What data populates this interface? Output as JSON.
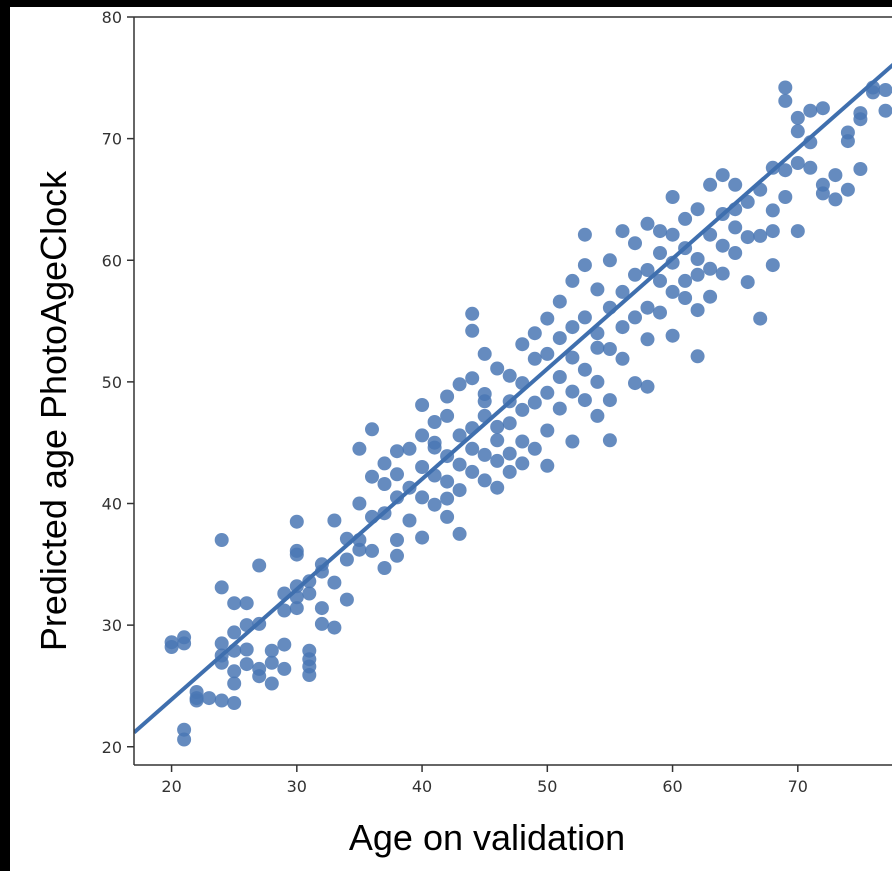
{
  "chart_data": {
    "type": "scatter",
    "title": "",
    "xlabel": "Age on validation",
    "ylabel": "Predicted age PhotoAgeClock",
    "xlim": [
      17,
      78
    ],
    "ylim": [
      18.5,
      80
    ],
    "x_ticks": [
      20,
      30,
      40,
      50,
      60,
      70
    ],
    "y_ticks": [
      20,
      30,
      40,
      50,
      60,
      70,
      80
    ],
    "grid": false,
    "legend": "none",
    "colors": {
      "points": "#4a77b4",
      "line": "#3f6fae",
      "axis": "#333333"
    },
    "regression_line": {
      "slope": 0.906,
      "intercept": 5.77
    },
    "series": [
      {
        "values": [
          [
            20,
            28.2
          ],
          [
            20,
            28.6
          ],
          [
            21,
            28.5
          ],
          [
            21,
            29.0
          ],
          [
            21,
            21.4
          ],
          [
            21,
            20.6
          ],
          [
            22,
            24.0
          ],
          [
            22,
            23.8
          ],
          [
            22,
            24.5
          ],
          [
            23,
            24.0
          ],
          [
            24,
            23.8
          ],
          [
            25,
            23.6
          ],
          [
            24,
            37.0
          ],
          [
            24,
            33.1
          ],
          [
            24,
            28.5
          ],
          [
            24,
            27.5
          ],
          [
            24,
            26.9
          ],
          [
            25,
            27.9
          ],
          [
            25,
            29.4
          ],
          [
            25,
            26.2
          ],
          [
            25,
            31.8
          ],
          [
            25,
            25.2
          ],
          [
            26,
            31.8
          ],
          [
            26,
            30.0
          ],
          [
            26,
            28.0
          ],
          [
            26,
            26.8
          ],
          [
            27,
            34.9
          ],
          [
            27,
            26.4
          ],
          [
            27,
            25.8
          ],
          [
            27,
            30.1
          ],
          [
            28,
            25.2
          ],
          [
            28,
            26.9
          ],
          [
            28,
            27.9
          ],
          [
            29,
            28.4
          ],
          [
            29,
            26.4
          ],
          [
            29,
            31.2
          ],
          [
            29,
            32.6
          ],
          [
            30,
            38.5
          ],
          [
            30,
            36.1
          ],
          [
            30,
            35.8
          ],
          [
            30,
            31.4
          ],
          [
            30,
            32.3
          ],
          [
            30,
            33.2
          ],
          [
            31,
            27.9
          ],
          [
            31,
            27.2
          ],
          [
            31,
            26.6
          ],
          [
            31,
            25.9
          ],
          [
            31,
            32.6
          ],
          [
            31,
            33.6
          ],
          [
            32,
            34.4
          ],
          [
            32,
            31.4
          ],
          [
            32,
            30.1
          ],
          [
            32,
            35.0
          ],
          [
            33,
            33.5
          ],
          [
            33,
            29.8
          ],
          [
            33,
            38.6
          ],
          [
            34,
            32.1
          ],
          [
            34,
            35.4
          ],
          [
            34,
            37.1
          ],
          [
            35,
            36.2
          ],
          [
            35,
            40.0
          ],
          [
            35,
            44.5
          ],
          [
            35,
            37.0
          ],
          [
            36,
            38.9
          ],
          [
            36,
            36.1
          ],
          [
            36,
            46.1
          ],
          [
            36,
            42.2
          ],
          [
            37,
            41.6
          ],
          [
            37,
            43.3
          ],
          [
            37,
            39.2
          ],
          [
            37,
            34.7
          ],
          [
            38,
            37.0
          ],
          [
            38,
            40.5
          ],
          [
            38,
            44.3
          ],
          [
            38,
            42.4
          ],
          [
            38,
            35.7
          ],
          [
            39,
            44.5
          ],
          [
            39,
            41.3
          ],
          [
            39,
            38.6
          ],
          [
            40,
            40.5
          ],
          [
            40,
            43.0
          ],
          [
            40,
            48.1
          ],
          [
            40,
            45.6
          ],
          [
            40,
            37.2
          ],
          [
            41,
            45.0
          ],
          [
            41,
            39.9
          ],
          [
            41,
            42.3
          ],
          [
            41,
            44.6
          ],
          [
            41,
            46.7
          ],
          [
            42,
            40.4
          ],
          [
            42,
            43.9
          ],
          [
            42,
            47.2
          ],
          [
            42,
            41.8
          ],
          [
            42,
            38.9
          ],
          [
            42,
            48.8
          ],
          [
            43,
            45.6
          ],
          [
            43,
            43.2
          ],
          [
            43,
            49.8
          ],
          [
            43,
            41.1
          ],
          [
            43,
            37.5
          ],
          [
            44,
            55.6
          ],
          [
            44,
            54.2
          ],
          [
            44,
            46.2
          ],
          [
            44,
            50.3
          ],
          [
            44,
            42.6
          ],
          [
            44,
            44.5
          ],
          [
            45,
            47.2
          ],
          [
            45,
            41.9
          ],
          [
            45,
            49.0
          ],
          [
            45,
            44.0
          ],
          [
            45,
            52.3
          ],
          [
            45,
            48.4
          ],
          [
            46,
            43.5
          ],
          [
            46,
            46.3
          ],
          [
            46,
            51.1
          ],
          [
            46,
            45.2
          ],
          [
            46,
            41.3
          ],
          [
            47,
            46.6
          ],
          [
            47,
            48.4
          ],
          [
            47,
            44.1
          ],
          [
            47,
            50.5
          ],
          [
            47,
            42.6
          ],
          [
            48,
            53.1
          ],
          [
            48,
            47.7
          ],
          [
            48,
            45.1
          ],
          [
            48,
            49.9
          ],
          [
            48,
            43.3
          ],
          [
            49,
            54.0
          ],
          [
            49,
            51.9
          ],
          [
            49,
            48.3
          ],
          [
            49,
            44.5
          ],
          [
            50,
            49.1
          ],
          [
            50,
            52.3
          ],
          [
            50,
            46.0
          ],
          [
            50,
            43.1
          ],
          [
            50,
            55.2
          ],
          [
            51,
            50.4
          ],
          [
            51,
            56.6
          ],
          [
            51,
            53.6
          ],
          [
            51,
            47.8
          ],
          [
            52,
            52.0
          ],
          [
            52,
            58.3
          ],
          [
            52,
            45.1
          ],
          [
            52,
            49.2
          ],
          [
            52,
            54.5
          ],
          [
            53,
            51.0
          ],
          [
            53,
            62.1
          ],
          [
            53,
            55.3
          ],
          [
            53,
            48.5
          ],
          [
            53,
            59.6
          ],
          [
            54,
            57.6
          ],
          [
            54,
            54.0
          ],
          [
            54,
            50.0
          ],
          [
            54,
            52.8
          ],
          [
            54,
            47.2
          ],
          [
            55,
            56.1
          ],
          [
            55,
            52.7
          ],
          [
            55,
            45.2
          ],
          [
            55,
            60.0
          ],
          [
            55,
            48.5
          ],
          [
            56,
            57.4
          ],
          [
            56,
            54.5
          ],
          [
            56,
            51.9
          ],
          [
            56,
            62.4
          ],
          [
            57,
            49.9
          ],
          [
            57,
            55.3
          ],
          [
            57,
            58.8
          ],
          [
            57,
            61.4
          ],
          [
            58,
            56.1
          ],
          [
            58,
            59.2
          ],
          [
            58,
            49.6
          ],
          [
            58,
            63.0
          ],
          [
            58,
            53.5
          ],
          [
            59,
            58.3
          ],
          [
            59,
            62.4
          ],
          [
            59,
            55.7
          ],
          [
            59,
            60.6
          ],
          [
            60,
            57.4
          ],
          [
            60,
            65.2
          ],
          [
            60,
            59.8
          ],
          [
            60,
            53.8
          ],
          [
            60,
            62.1
          ],
          [
            61,
            61.0
          ],
          [
            61,
            56.9
          ],
          [
            61,
            63.4
          ],
          [
            61,
            58.3
          ],
          [
            62,
            64.2
          ],
          [
            62,
            60.1
          ],
          [
            62,
            55.9
          ],
          [
            62,
            58.8
          ],
          [
            62,
            52.1
          ],
          [
            63,
            59.3
          ],
          [
            63,
            66.2
          ],
          [
            63,
            62.1
          ],
          [
            63,
            57.0
          ],
          [
            64,
            61.2
          ],
          [
            64,
            63.8
          ],
          [
            64,
            67.0
          ],
          [
            64,
            58.9
          ],
          [
            65,
            60.6
          ],
          [
            65,
            64.2
          ],
          [
            65,
            66.2
          ],
          [
            65,
            62.7
          ],
          [
            66,
            61.9
          ],
          [
            66,
            64.8
          ],
          [
            66,
            58.2
          ],
          [
            67,
            65.8
          ],
          [
            67,
            62.0
          ],
          [
            67,
            55.2
          ],
          [
            68,
            67.6
          ],
          [
            68,
            64.1
          ],
          [
            68,
            62.4
          ],
          [
            68,
            59.6
          ],
          [
            69,
            74.2
          ],
          [
            69,
            73.1
          ],
          [
            69,
            67.4
          ],
          [
            69,
            65.2
          ],
          [
            70,
            71.7
          ],
          [
            70,
            70.6
          ],
          [
            70,
            68.0
          ],
          [
            70,
            62.4
          ],
          [
            71,
            72.3
          ],
          [
            71,
            69.7
          ],
          [
            71,
            67.6
          ],
          [
            72,
            72.5
          ],
          [
            72,
            66.2
          ],
          [
            72,
            65.5
          ],
          [
            73,
            67.0
          ],
          [
            73,
            65.0
          ],
          [
            74,
            69.8
          ],
          [
            74,
            70.5
          ],
          [
            74,
            65.8
          ],
          [
            75,
            71.6
          ],
          [
            75,
            72.1
          ],
          [
            75,
            67.5
          ],
          [
            76,
            74.2
          ],
          [
            76,
            73.8
          ],
          [
            77,
            72.3
          ],
          [
            77,
            74.0
          ]
        ]
      }
    ]
  }
}
